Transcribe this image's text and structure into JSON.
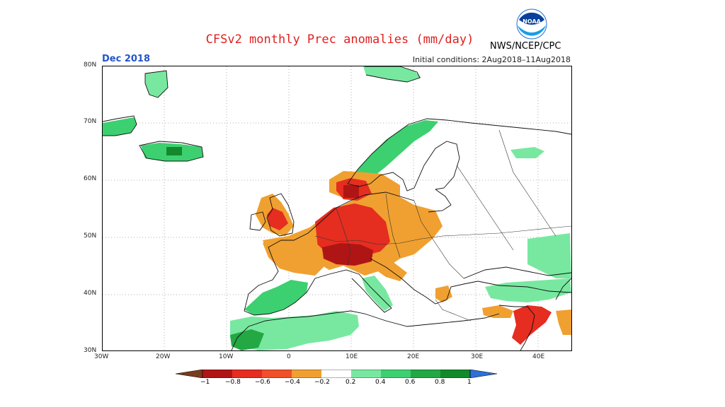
{
  "header": {
    "title": "CFSv2 monthly Prec anomalies (mm/day)",
    "organization": "NWS/NCEP/CPC",
    "logo_text": "NOAA",
    "period": "Dec 2018",
    "initial_conditions": "Initial conditions: 2Aug2018–11Aug2018"
  },
  "map": {
    "lat_labels": [
      "80N",
      "70N",
      "60N",
      "50N",
      "40N",
      "30N"
    ],
    "lon_labels": [
      "30W",
      "20W",
      "10W",
      "0",
      "10E",
      "20E",
      "30E",
      "40E"
    ],
    "grid": "dotted",
    "anomaly_regions": [
      {
        "name": "Greenland",
        "level": 0.4
      },
      {
        "name": "Iceland",
        "level": 0.6
      },
      {
        "name": "Norway coast",
        "level": 0.5
      },
      {
        "name": "Svalbard",
        "level": 0.4
      },
      {
        "name": "Kola",
        "level": 0.4
      },
      {
        "name": "Britain and Ireland",
        "level": -0.3
      },
      {
        "name": "France",
        "level": -0.3
      },
      {
        "name": "Germany",
        "level": -0.6
      },
      {
        "name": "Alps",
        "level": -0.8
      },
      {
        "name": "Poland",
        "level": -0.3
      },
      {
        "name": "Iberia",
        "level": 0.4
      },
      {
        "name": "North Africa",
        "level": 0.4
      },
      {
        "name": "Levant",
        "level": -0.6
      }
    ]
  },
  "colorbar": {
    "labels": [
      "−1",
      "−0.8",
      "−0.6",
      "−0.4",
      "−0.2",
      "0.2",
      "0.4",
      "0.6",
      "0.8",
      "1"
    ],
    "colors": [
      "#7a3b1c",
      "#b01515",
      "#e52d20",
      "#f0502a",
      "#f0a030",
      "#ffffff",
      "#78e8a0",
      "#3cd070",
      "#23a844",
      "#128a2c",
      "#2f6fd8"
    ]
  }
}
